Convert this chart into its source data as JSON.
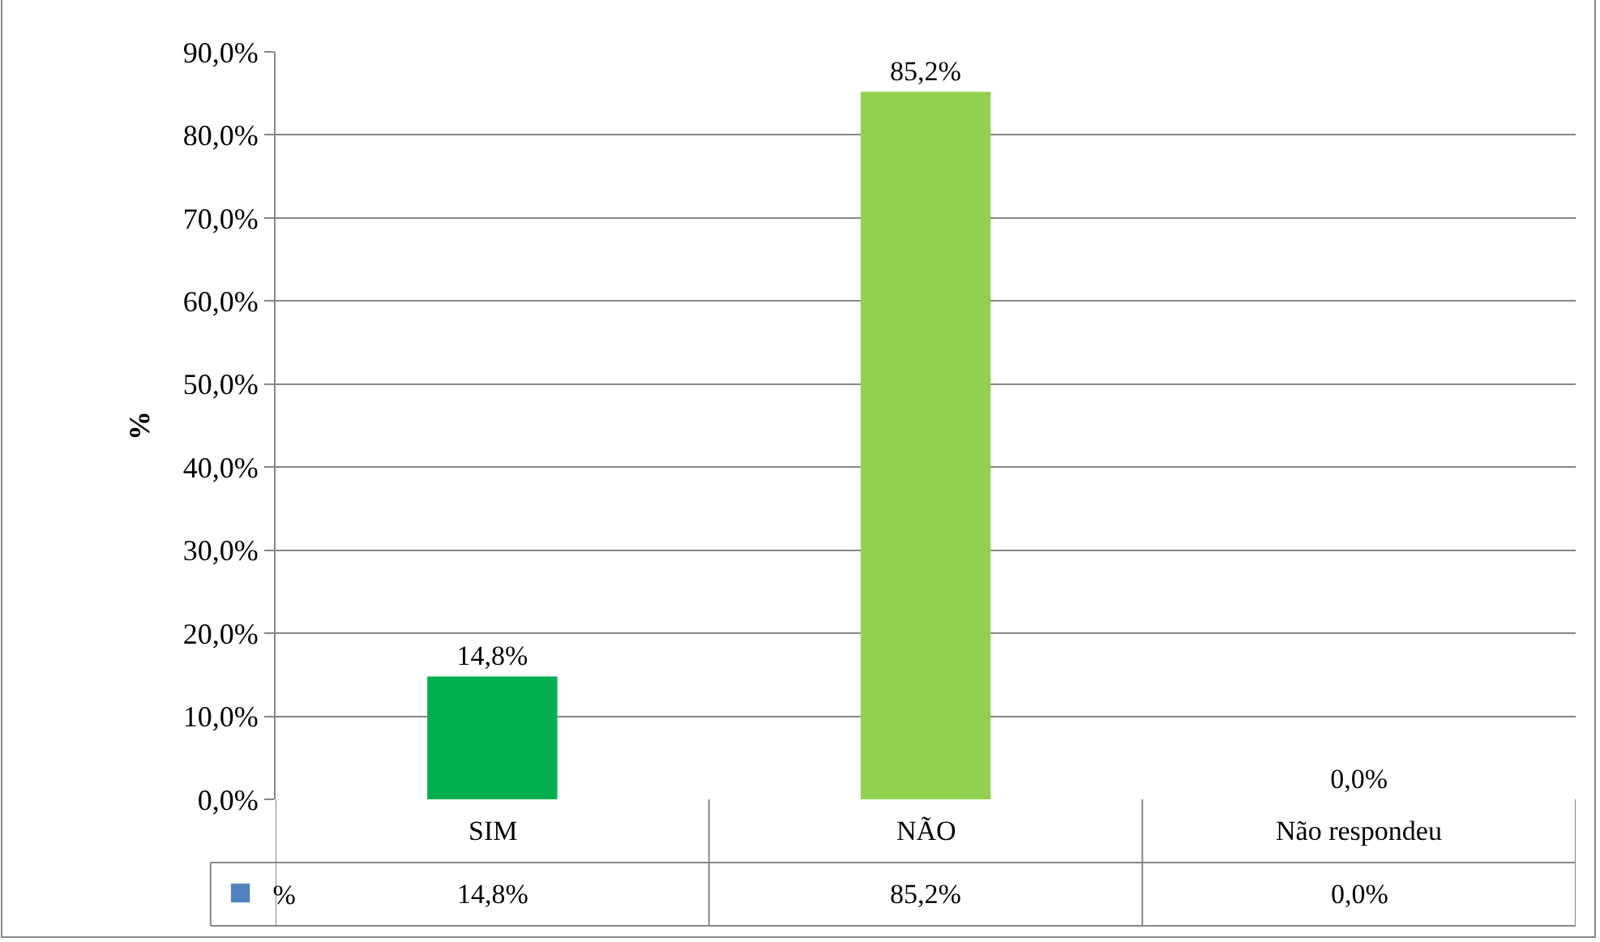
{
  "chart_data": {
    "type": "bar",
    "ylabel": "%",
    "categories": [
      "SIM",
      "NÃO",
      "Não respondeu"
    ],
    "series": [
      {
        "name": "%",
        "color": "#4f81bd",
        "values": [
          14.8,
          85.2,
          0.0
        ],
        "colors": [
          "#00b050",
          "#92d050",
          "#92d050"
        ],
        "value_labels": [
          "14,8%",
          "85,2%",
          "0,0%"
        ]
      }
    ],
    "ylim": [
      0,
      90
    ],
    "yticks": [
      {
        "value": 0,
        "label": "0,0%"
      },
      {
        "value": 10,
        "label": "10,0%"
      },
      {
        "value": 20,
        "label": "20,0%"
      },
      {
        "value": 30,
        "label": "30,0%"
      },
      {
        "value": 40,
        "label": "40,0%"
      },
      {
        "value": 50,
        "label": "50,0%"
      },
      {
        "value": 60,
        "label": "60,0%"
      },
      {
        "value": 70,
        "label": "70,0%"
      },
      {
        "value": 80,
        "label": "80,0%"
      },
      {
        "value": 90,
        "label": "90,0%"
      }
    ],
    "grid": "y"
  }
}
